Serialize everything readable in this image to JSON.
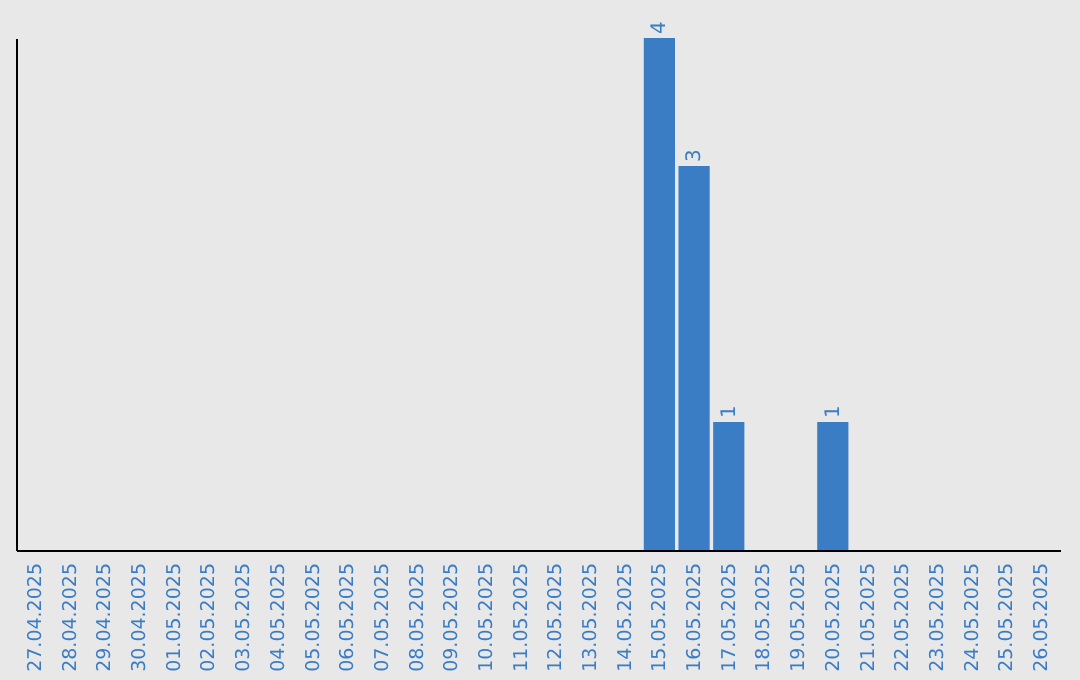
{
  "chart_data": {
    "type": "bar",
    "categories": [
      "27.04.2025",
      "28.04.2025",
      "29.04.2025",
      "30.04.2025",
      "01.05.2025",
      "02.05.2025",
      "03.05.2025",
      "04.05.2025",
      "05.05.2025",
      "06.05.2025",
      "07.05.2025",
      "08.05.2025",
      "09.05.2025",
      "10.05.2025",
      "11.05.2025",
      "12.05.2025",
      "13.05.2025",
      "14.05.2025",
      "15.05.2025",
      "16.05.2025",
      "17.05.2025",
      "18.05.2025",
      "19.05.2025",
      "20.05.2025",
      "21.05.2025",
      "22.05.2025",
      "23.05.2025",
      "24.05.2025",
      "25.05.2025",
      "26.05.2025"
    ],
    "values": [
      null,
      null,
      null,
      null,
      null,
      null,
      null,
      null,
      null,
      null,
      null,
      null,
      null,
      null,
      null,
      null,
      null,
      null,
      4,
      3,
      1,
      null,
      null,
      1,
      null,
      null,
      null,
      null,
      null,
      null
    ],
    "value_labels": [
      null,
      null,
      null,
      null,
      null,
      null,
      null,
      null,
      null,
      null,
      null,
      null,
      null,
      null,
      null,
      null,
      null,
      null,
      "4",
      "3",
      "1",
      null,
      null,
      "1",
      null,
      null,
      null,
      null,
      null,
      null
    ],
    "color": "#3b7dc4",
    "ylim": [
      0,
      4
    ],
    "tick_labels": "x"
  }
}
